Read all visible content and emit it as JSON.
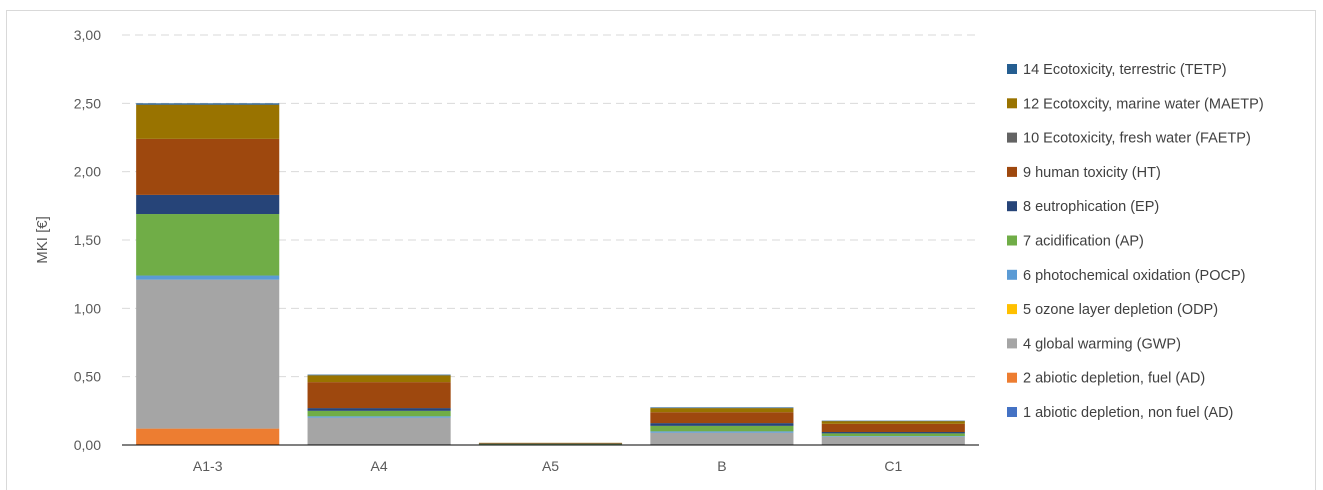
{
  "chart_data": {
    "type": "bar",
    "stacked": true,
    "categories": [
      "A1-3",
      "A4",
      "A5",
      "B",
      "C1"
    ],
    "ylabel": "MKI [€]",
    "ylim": [
      0,
      3.0
    ],
    "yticks": [
      "0,00",
      "0,50",
      "1,00",
      "1,50",
      "2,00",
      "2,50",
      "3,00"
    ],
    "grid": true,
    "legend_position": "right",
    "series": [
      {
        "name": "1 abiotic depletion, non fuel (AD)",
        "color": "#4472c4",
        "values": [
          0.0,
          0.0,
          0.0,
          0.0,
          0.0
        ]
      },
      {
        "name": "2 abiotic depletion, fuel (AD)",
        "color": "#ed7d31",
        "values": [
          0.12,
          0.0,
          0.0,
          0.0,
          0.0
        ]
      },
      {
        "name": "4 global warming (GWP)",
        "color": "#a5a5a5",
        "values": [
          1.09,
          0.2,
          0.005,
          0.09,
          0.06
        ]
      },
      {
        "name": "5 ozone layer depletion (ODP)",
        "color": "#ffc000",
        "values": [
          0.0,
          0.0,
          0.0,
          0.0,
          0.0
        ]
      },
      {
        "name": "6 photochemical oxidation (POCP)",
        "color": "#5b9bd5",
        "values": [
          0.03,
          0.01,
          0.0,
          0.01,
          0.005
        ]
      },
      {
        "name": "7 acidification (AP)",
        "color": "#70ad47",
        "values": [
          0.45,
          0.04,
          0.003,
          0.04,
          0.02
        ]
      },
      {
        "name": "8 eutrophication (EP)",
        "color": "#264478",
        "values": [
          0.14,
          0.02,
          0.002,
          0.02,
          0.01
        ]
      },
      {
        "name": "9 human toxicity (HT)",
        "color": "#9e480e",
        "values": [
          0.41,
          0.19,
          0.004,
          0.08,
          0.06
        ]
      },
      {
        "name": "10 Ecotoxicity, fresh water (FAETP)",
        "color": "#636363",
        "values": [
          0.0,
          0.0,
          0.0,
          0.0,
          0.0
        ]
      },
      {
        "name": "12 Ecotoxcity, marine water (MAETP)",
        "color": "#997300",
        "values": [
          0.25,
          0.05,
          0.002,
          0.03,
          0.02
        ]
      },
      {
        "name": "14 Ecotoxicity, terrestric (TETP)",
        "color": "#255e91",
        "values": [
          0.01,
          0.005,
          0.0,
          0.005,
          0.003
        ]
      }
    ]
  }
}
